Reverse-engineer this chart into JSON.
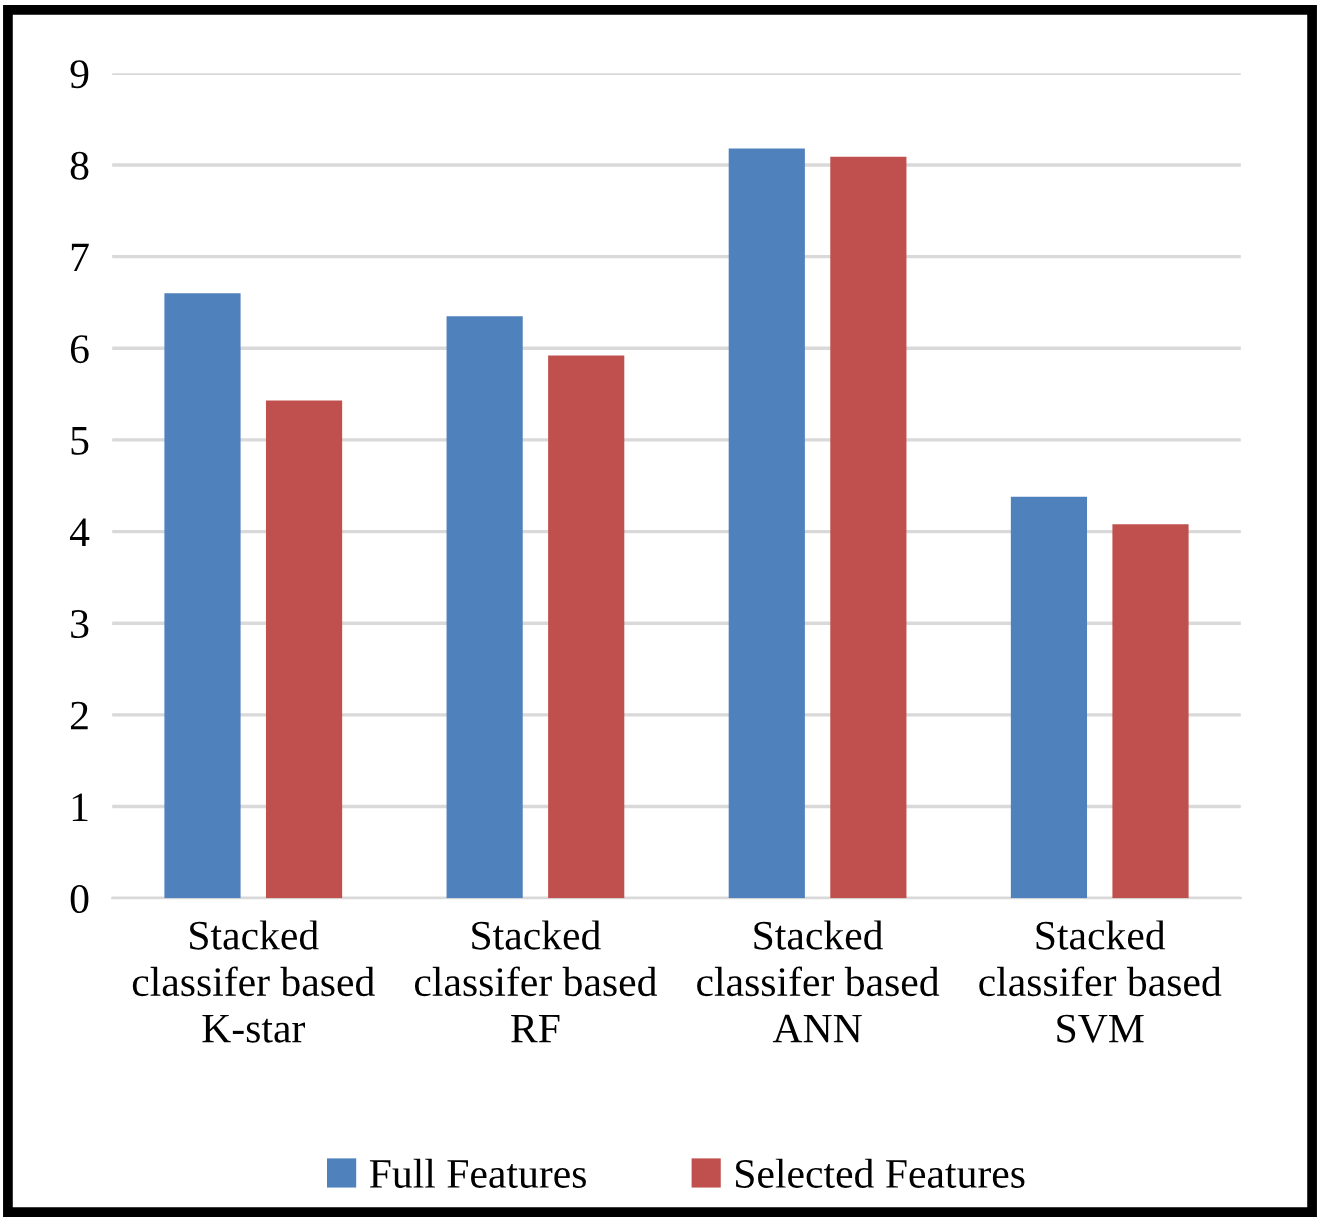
{
  "chart_data": {
    "type": "bar",
    "categories": [
      "Stacked\nclassifer based\nK-star",
      "Stacked\nclassifer based\nRF",
      "Stacked\nclassifer based\nANN",
      "Stacked\nclassifer based\nSVM"
    ],
    "series": [
      {
        "name": "Full Features",
        "color": "#4f81bd",
        "values": [
          6.6,
          6.35,
          8.18,
          4.38
        ]
      },
      {
        "name": "Selected Features",
        "color": "#c0504d",
        "values": [
          5.43,
          5.92,
          8.09,
          4.08
        ]
      }
    ],
    "ylim": [
      0,
      9
    ],
    "yticks": [
      0,
      1,
      2,
      3,
      4,
      5,
      6,
      7,
      8,
      9
    ],
    "grid": "y",
    "legend": "bottom"
  }
}
